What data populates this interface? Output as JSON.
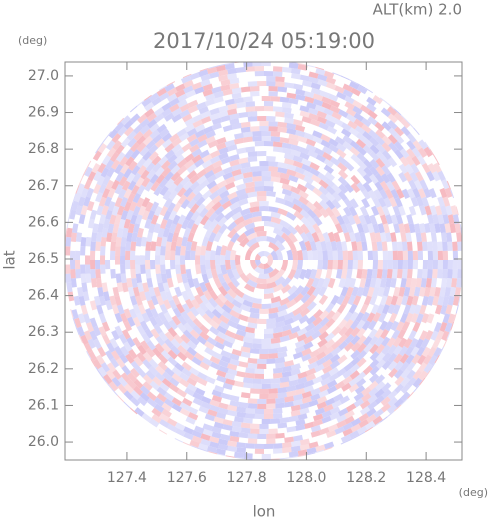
{
  "chart_data": {
    "type": "radar-ppi",
    "title": "2017/10/24 05:19:00",
    "subtitle": "ALT(km) 2.0",
    "y_unit": "(deg)",
    "x_unit": "(deg)",
    "xlabel": "lon",
    "ylabel": "lat",
    "xlim": [
      127.193,
      128.52
    ],
    "ylim": [
      25.951,
      27.038
    ],
    "xticks": [
      127.4,
      127.6,
      127.8,
      {
        "value": 128,
        "label": "128.0"
      },
      128.2,
      128.4
    ],
    "yticks": [
      {
        "value": 26,
        "label": "26.0"
      },
      26.1,
      26.2,
      26.3,
      26.4,
      26.5,
      26.6,
      26.7,
      26.8,
      26.9,
      {
        "value": 27,
        "label": "27.0"
      }
    ]
  }
}
